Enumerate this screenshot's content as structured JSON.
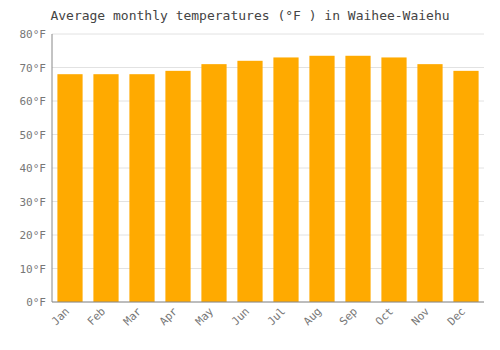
{
  "chart_data": {
    "type": "bar",
    "title": "Average monthly temperatures (°F ) in Waihee-Waiehu",
    "categories": [
      "Jan",
      "Feb",
      "Mar",
      "Apr",
      "May",
      "Jun",
      "Jul",
      "Aug",
      "Sep",
      "Oct",
      "Nov",
      "Dec"
    ],
    "values": [
      68.0,
      68.0,
      68.0,
      69.0,
      71.0,
      72.0,
      73.0,
      73.5,
      73.5,
      73.0,
      71.0,
      69.0
    ],
    "color": "#FFAA00",
    "ylim": [
      0,
      80
    ],
    "yticks": [
      {
        "value": 0,
        "label": "0°F"
      },
      {
        "value": 10,
        "label": "10°F"
      },
      {
        "value": 20,
        "label": "20°F"
      },
      {
        "value": 30,
        "label": "30°F"
      },
      {
        "value": 40,
        "label": "40°F"
      },
      {
        "value": 50,
        "label": "50°F"
      },
      {
        "value": 60,
        "label": "60°F"
      },
      {
        "value": 70,
        "label": "70°F"
      },
      {
        "value": 80,
        "label": "80°F"
      }
    ],
    "grid": true
  }
}
